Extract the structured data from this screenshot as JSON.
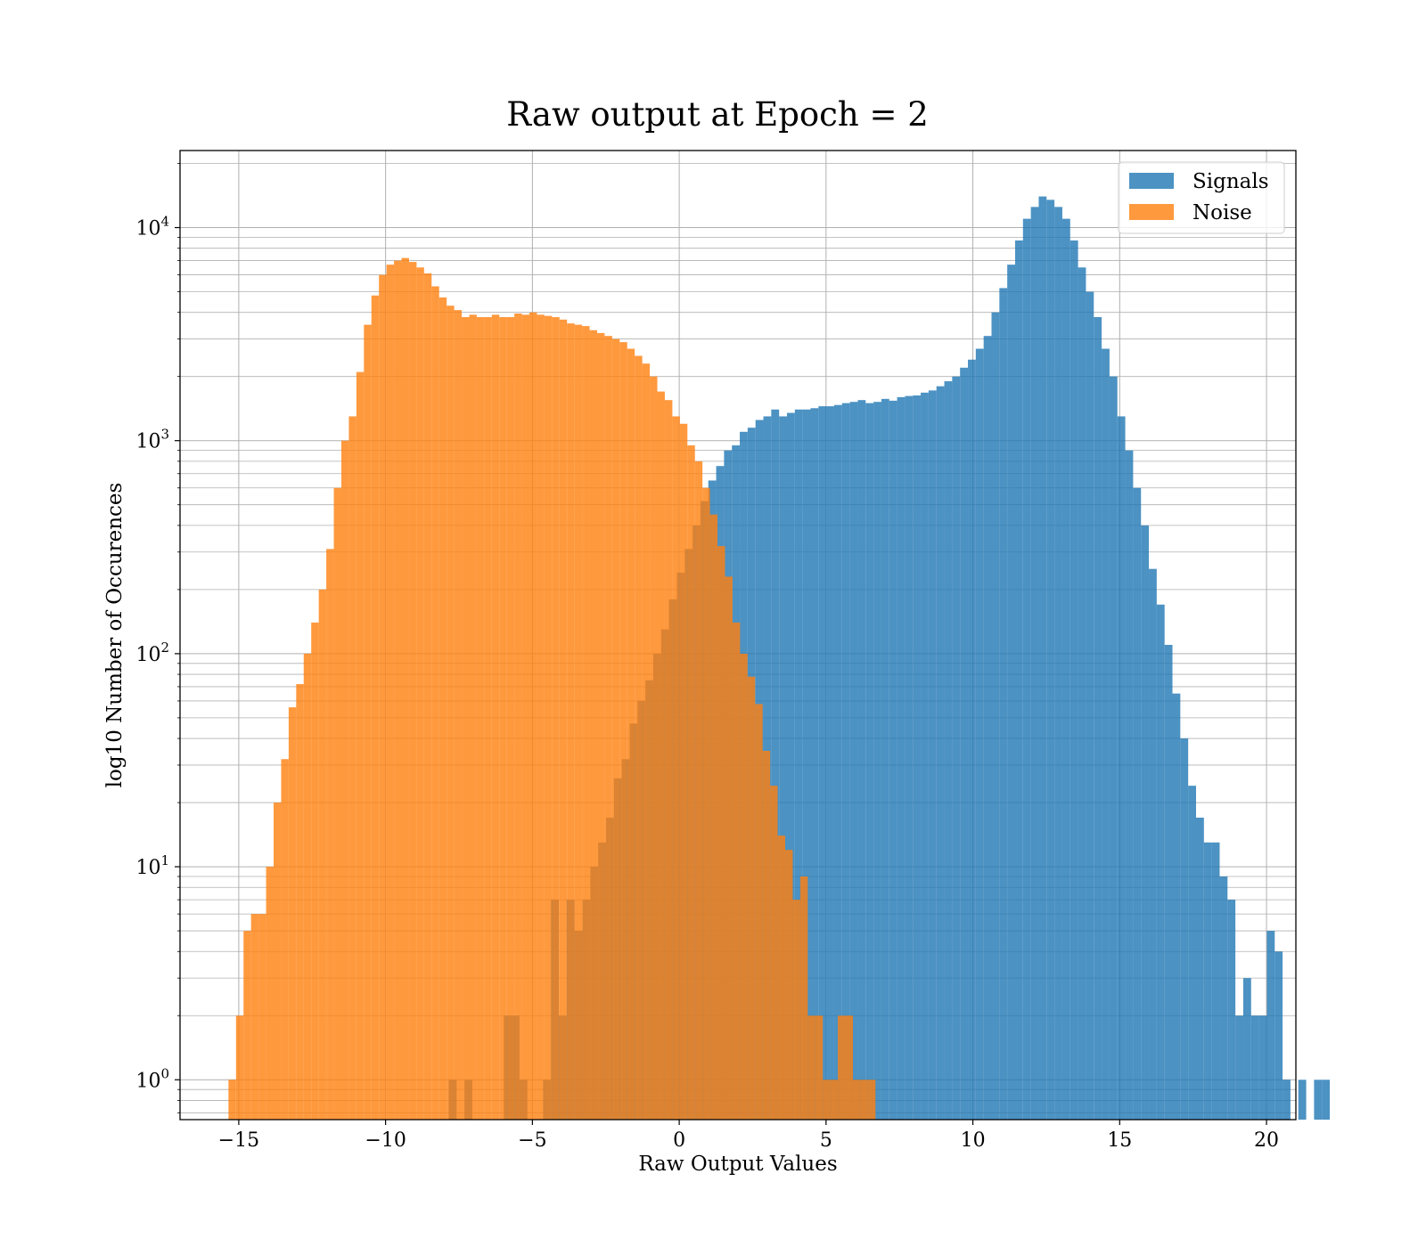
{
  "chart_data": {
    "type": "bar",
    "title": "Raw output at Epoch = 2",
    "xlabel": "Raw Output Values",
    "ylabel": "log10 Number of Occurences",
    "xlim": [
      -17,
      21
    ],
    "ylim": [
      0.65,
      23000
    ],
    "yscale": "log",
    "grid": true,
    "legend_position": "top-right",
    "xticks": [
      -15,
      -10,
      -5,
      0,
      5,
      10,
      15,
      20
    ],
    "xtick_labels": [
      "−15",
      "−10",
      "−5",
      "0",
      "5",
      "10",
      "15",
      "20"
    ],
    "ytick_labels": [
      {
        "base": "10",
        "exp": "0",
        "value": 1
      },
      {
        "base": "10",
        "exp": "1",
        "value": 10
      },
      {
        "base": "10",
        "exp": "2",
        "value": 100
      },
      {
        "base": "10",
        "exp": "3",
        "value": 1000
      },
      {
        "base": "10",
        "exp": "4",
        "value": 10000
      }
    ],
    "series": [
      {
        "name": "Signals",
        "color": "#1f77b4",
        "alpha": 0.8,
        "bin_start": -7.85,
        "bin_width": 0.2679,
        "values": [
          1,
          0,
          1,
          0,
          0,
          0,
          0,
          2,
          2,
          1,
          0,
          0,
          1,
          7,
          2,
          7,
          5,
          7,
          10,
          13,
          17,
          26,
          32,
          47,
          60,
          75,
          100,
          130,
          180,
          240,
          310,
          400,
          520,
          650,
          760,
          900,
          950,
          1100,
          1150,
          1250,
          1300,
          1400,
          1300,
          1350,
          1400,
          1400,
          1420,
          1450,
          1450,
          1470,
          1500,
          1520,
          1550,
          1500,
          1520,
          1570,
          1540,
          1600,
          1620,
          1630,
          1680,
          1720,
          1800,
          1900,
          2000,
          2200,
          2400,
          2700,
          3100,
          4000,
          5200,
          6700,
          8700,
          11000,
          12500,
          14000,
          13500,
          12500,
          11000,
          8700,
          6500,
          5000,
          3800,
          2700,
          2000,
          1300,
          900,
          600,
          400,
          250,
          170,
          110,
          65,
          40,
          24,
          17,
          13,
          13,
          9,
          7,
          2,
          3,
          2,
          2,
          5,
          4,
          1,
          0,
          1,
          0,
          1,
          1
        ]
      },
      {
        "name": "Noise",
        "color": "#ff7f0e",
        "alpha": 0.8,
        "bin_start": -15.35,
        "bin_width": 0.2562,
        "values": [
          1,
          2,
          5,
          6,
          6,
          10,
          20,
          32,
          56,
          72,
          100,
          140,
          200,
          310,
          600,
          1000,
          1300,
          2100,
          3500,
          4800,
          6000,
          6700,
          7000,
          7200,
          6900,
          6500,
          6100,
          5300,
          4700,
          4300,
          4100,
          3800,
          3900,
          3800,
          3800,
          3900,
          3800,
          3800,
          3950,
          3900,
          4000,
          3900,
          3850,
          3800,
          3700,
          3550,
          3500,
          3450,
          3300,
          3200,
          3100,
          3000,
          2900,
          2700,
          2500,
          2300,
          2000,
          1700,
          1550,
          1300,
          1200,
          950,
          800,
          600,
          450,
          320,
          230,
          140,
          100,
          78,
          58,
          35,
          24,
          14,
          12,
          7,
          9,
          2,
          2,
          1,
          1,
          2,
          2,
          1,
          1,
          1
        ]
      }
    ],
    "legend": [
      {
        "name": "Signals",
        "color": "#1f77b4"
      },
      {
        "name": "Noise",
        "color": "#ff7f0e"
      }
    ]
  }
}
